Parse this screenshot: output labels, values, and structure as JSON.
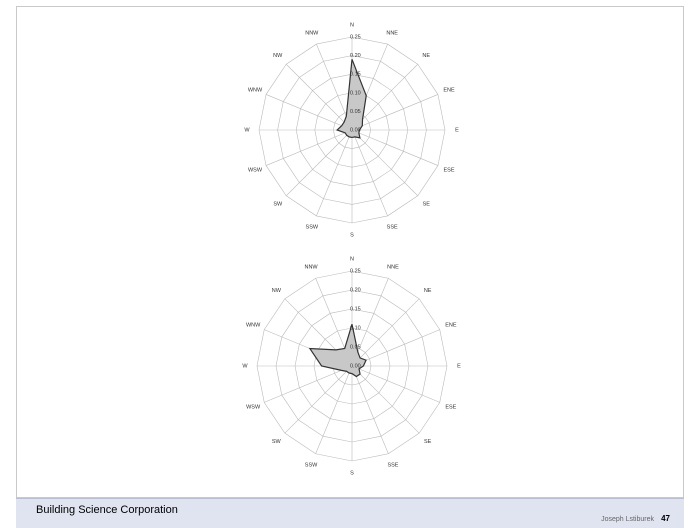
{
  "chart_data": [
    {
      "type": "radar",
      "categories": [
        "N",
        "NNE",
        "NE",
        "ENE",
        "E",
        "ESE",
        "SE",
        "SSE",
        "S",
        "SSW",
        "SW",
        "WSW",
        "W",
        "WNW",
        "NW",
        "NNW"
      ],
      "values": [
        0.19,
        0.1,
        0.04,
        0.03,
        0.02,
        0.02,
        0.03,
        0.02,
        0.02,
        0.02,
        0.02,
        0.02,
        0.04,
        0.03,
        0.03,
        0.04
      ],
      "color": "#c8c8c8",
      "rlim": [
        0,
        0.25
      ],
      "rticks": [
        {
          "value": 0,
          "label": "0.00"
        },
        {
          "value": 0.05,
          "label": "0.05"
        },
        {
          "value": 0.1,
          "label": "0.10"
        },
        {
          "value": 0.15,
          "label": "0.15"
        },
        {
          "value": 0.2,
          "label": "0.20"
        },
        {
          "value": 0.25,
          "label": "0.25"
        }
      ]
    },
    {
      "type": "radar",
      "categories": [
        "N",
        "NNE",
        "NE",
        "ENE",
        "E",
        "ESE",
        "SE",
        "SSE",
        "S",
        "SSW",
        "SW",
        "WSW",
        "W",
        "WNW",
        "NW",
        "NNW"
      ],
      "values": [
        0.11,
        0.04,
        0.03,
        0.04,
        0.03,
        0.02,
        0.03,
        0.03,
        0.02,
        0.02,
        0.02,
        0.03,
        0.08,
        0.12,
        0.06,
        0.05
      ],
      "color": "#c8c8c8",
      "rlim": [
        0,
        0.25
      ],
      "rticks": [
        {
          "value": 0,
          "label": "0.00"
        },
        {
          "value": 0.05,
          "label": "0.05"
        },
        {
          "value": 0.1,
          "label": "0.10"
        },
        {
          "value": 0.15,
          "label": "0.15"
        },
        {
          "value": 0.2,
          "label": "0.20"
        },
        {
          "value": 0.25,
          "label": "0.25"
        }
      ]
    }
  ],
  "footer": {
    "company": "Building Science Corporation",
    "author": "Joseph Lstiburek",
    "page": "47"
  }
}
